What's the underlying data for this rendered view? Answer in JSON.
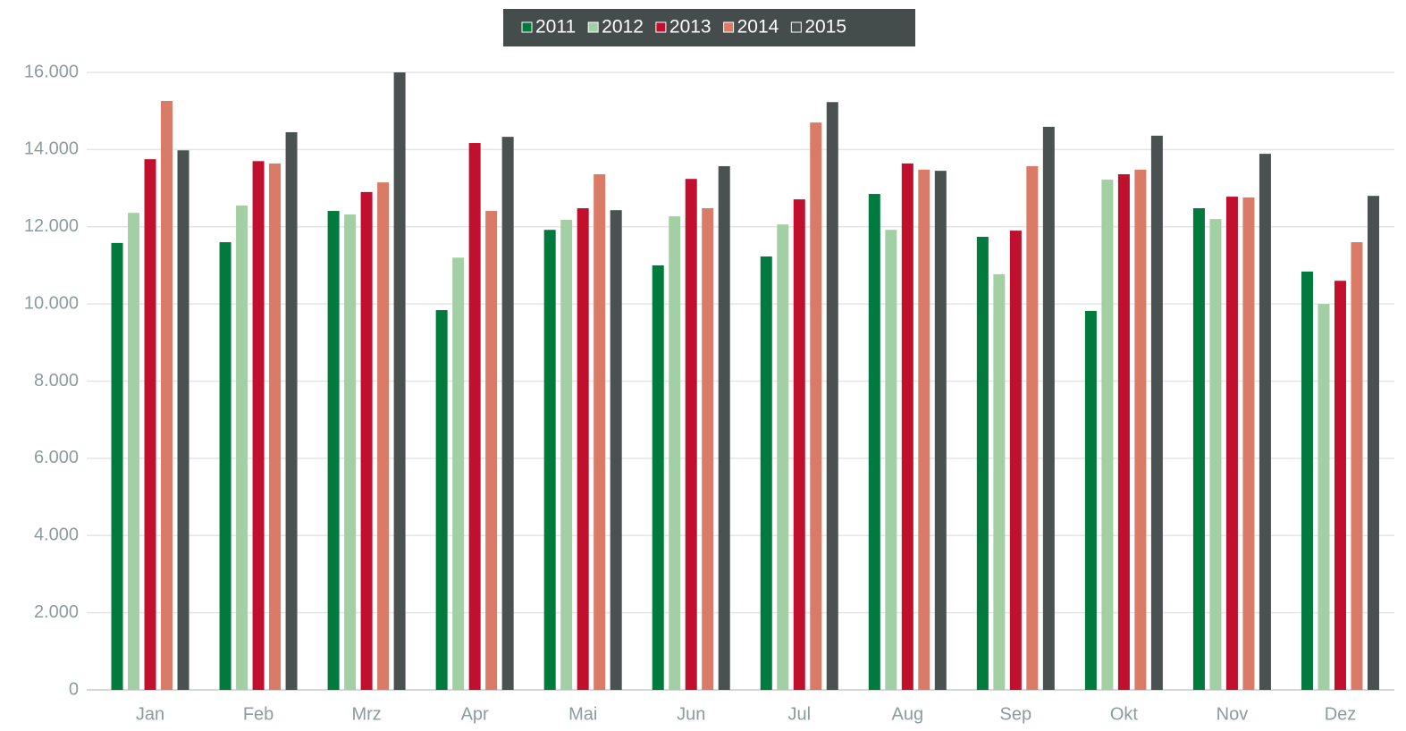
{
  "chart_data": {
    "type": "bar",
    "categories": [
      "Jan",
      "Feb",
      "Mrz",
      "Apr",
      "Mai",
      "Jun",
      "Jul",
      "Aug",
      "Sep",
      "Okt",
      "Nov",
      "Dez"
    ],
    "series": [
      {
        "name": "2011",
        "color": "#007a3d",
        "values": [
          11580,
          11600,
          12410,
          9840,
          11920,
          11000,
          11230,
          12850,
          11740,
          9820,
          12480,
          10840
        ]
      },
      {
        "name": "2012",
        "color": "#a3cfa5",
        "values": [
          12360,
          12550,
          12320,
          11200,
          12180,
          12270,
          12060,
          11920,
          10770,
          13220,
          12200,
          10000
        ]
      },
      {
        "name": "2013",
        "color": "#c0102e",
        "values": [
          13750,
          13700,
          12900,
          14170,
          12480,
          13240,
          12710,
          13640,
          11900,
          13360,
          12780,
          10600
        ]
      },
      {
        "name": "2014",
        "color": "#d97b66",
        "values": [
          15260,
          13640,
          13150,
          12410,
          13360,
          12480,
          14700,
          13480,
          13570,
          13480,
          12760,
          11600
        ]
      },
      {
        "name": "2015",
        "color": "#4a5151",
        "values": [
          13980,
          14450,
          16000,
          14330,
          12430,
          13570,
          15230,
          13450,
          14590,
          14360,
          13890,
          12800
        ]
      }
    ],
    "ylim": [
      0,
      16000
    ],
    "yticks": [
      0,
      {
        "value": 2000,
        "label": "2.000"
      },
      {
        "value": 4000,
        "label": "4.000"
      },
      {
        "value": 6000,
        "label": "6.000"
      },
      {
        "value": 8000,
        "label": "8.000"
      },
      {
        "value": 10000,
        "label": "10.000"
      },
      {
        "value": 12000,
        "label": "12.000"
      },
      {
        "value": 14000,
        "label": "14.000"
      },
      {
        "value": 16000,
        "label": "16.000"
      }
    ],
    "grid": true,
    "legend": "top"
  }
}
